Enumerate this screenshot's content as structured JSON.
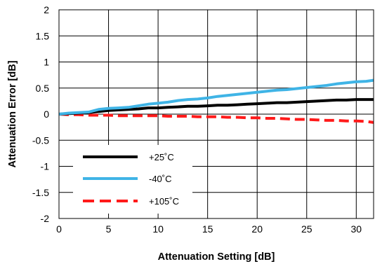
{
  "chart_data": {
    "type": "line",
    "title": "",
    "xlabel": "Attenuation Setting [dB]",
    "ylabel": "Attenuation Error [dB]",
    "xlim": [
      0,
      31.75
    ],
    "ylim": [
      -2,
      2
    ],
    "x_ticks": [
      0,
      5,
      10,
      15,
      20,
      25,
      30
    ],
    "y_ticks": [
      -2,
      -1.5,
      -1,
      -0.5,
      0,
      0.5,
      1,
      1.5,
      2
    ],
    "x_tick_labels": [
      "0",
      "5",
      "10",
      "15",
      "20",
      "25",
      "30"
    ],
    "y_tick_labels": [
      "-2",
      "-1.5",
      "-1",
      "-0.5",
      "0",
      "0.5",
      "1",
      "1.5",
      "2"
    ],
    "grid": true,
    "legend_position": "bottom-left",
    "x": [
      0,
      1,
      2,
      3,
      4,
      5,
      6,
      7,
      8,
      9,
      10,
      11,
      12,
      13,
      14,
      15,
      16,
      17,
      18,
      19,
      20,
      21,
      22,
      23,
      24,
      25,
      26,
      27,
      28,
      29,
      30,
      31,
      31.75
    ],
    "series": [
      {
        "name": "+25˚C",
        "color": "#000000",
        "dash": "solid",
        "values": [
          0,
          0.01,
          0.02,
          0.03,
          0.05,
          0.07,
          0.08,
          0.09,
          0.1,
          0.12,
          0.12,
          0.13,
          0.14,
          0.15,
          0.15,
          0.16,
          0.17,
          0.17,
          0.18,
          0.19,
          0.2,
          0.21,
          0.22,
          0.22,
          0.23,
          0.24,
          0.25,
          0.26,
          0.27,
          0.27,
          0.28,
          0.28,
          0.28
        ]
      },
      {
        "name": "-40˚C",
        "color": "#3fb4e6",
        "dash": "solid",
        "values": [
          0,
          0.02,
          0.03,
          0.04,
          0.09,
          0.11,
          0.12,
          0.13,
          0.16,
          0.19,
          0.21,
          0.23,
          0.26,
          0.28,
          0.29,
          0.31,
          0.34,
          0.36,
          0.38,
          0.4,
          0.42,
          0.44,
          0.46,
          0.47,
          0.49,
          0.51,
          0.53,
          0.55,
          0.58,
          0.6,
          0.62,
          0.63,
          0.65
        ]
      },
      {
        "name": "+105˚C",
        "color": "#ff1a1a",
        "dash": "dashed",
        "values": [
          0,
          -0.01,
          -0.01,
          -0.02,
          -0.02,
          -0.02,
          -0.03,
          -0.03,
          -0.03,
          -0.03,
          -0.03,
          -0.04,
          -0.04,
          -0.04,
          -0.05,
          -0.05,
          -0.05,
          -0.06,
          -0.06,
          -0.07,
          -0.07,
          -0.08,
          -0.08,
          -0.09,
          -0.1,
          -0.1,
          -0.11,
          -0.12,
          -0.12,
          -0.13,
          -0.13,
          -0.14,
          -0.16
        ]
      }
    ]
  }
}
